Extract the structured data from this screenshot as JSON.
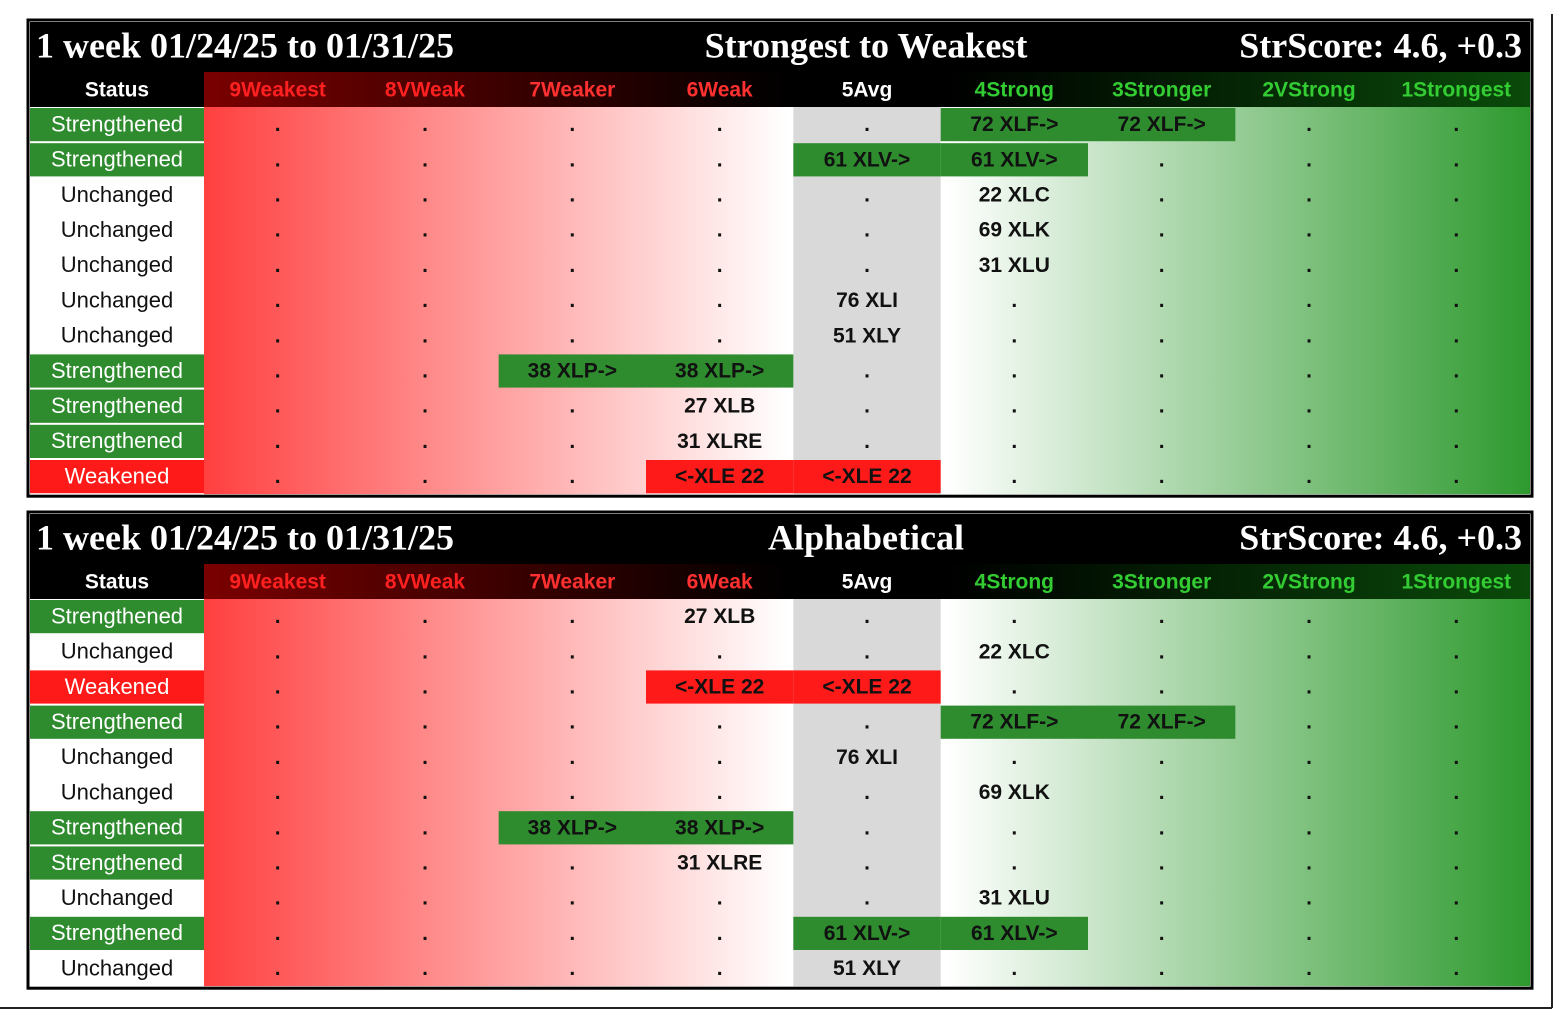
{
  "panels": [
    {
      "header": {
        "period": "1 week 01/24/25 to 01/31/25",
        "title": "Strongest to Weakest",
        "score": "StrScore: 4.6, +0.3"
      },
      "columns": [
        "Status",
        "9Weakest",
        "8VWeak",
        "7Weaker",
        "6Weak",
        "5Avg",
        "4Strong",
        "3Stronger",
        "2VStrong",
        "1Strongest"
      ],
      "column_colors": [
        "#ffffff",
        "#ff2020",
        "#ff2020",
        "#ff3030",
        "#ff3030",
        "#ffffff",
        "#33cc33",
        "#33cc33",
        "#33cc33",
        "#33cc33"
      ],
      "rows": [
        {
          "status": "Strengthened",
          "color": "#2e8b2e",
          "moved": true,
          "cells": [
            ".",
            ".",
            ".",
            ".",
            ".",
            "72 XLF->",
            "72 XLF->",
            ".",
            "."
          ]
        },
        {
          "status": "Strengthened",
          "color": "#2e8b2e",
          "moved": true,
          "cells": [
            ".",
            ".",
            ".",
            ".",
            "61 XLV->",
            "61 XLV->",
            ".",
            ".",
            "."
          ]
        },
        {
          "status": "Unchanged",
          "color": "#ffffff",
          "moved": false,
          "cells": [
            ".",
            ".",
            ".",
            ".",
            ".",
            "22 XLC",
            ".",
            ".",
            "."
          ]
        },
        {
          "status": "Unchanged",
          "color": "#ffffff",
          "moved": false,
          "cells": [
            ".",
            ".",
            ".",
            ".",
            ".",
            "69 XLK",
            ".",
            ".",
            "."
          ]
        },
        {
          "status": "Unchanged",
          "color": "#ffffff",
          "moved": false,
          "cells": [
            ".",
            ".",
            ".",
            ".",
            ".",
            "31 XLU",
            ".",
            ".",
            "."
          ]
        },
        {
          "status": "Unchanged",
          "color": "#ffffff",
          "moved": false,
          "cells": [
            ".",
            ".",
            ".",
            ".",
            "76 XLI",
            ".",
            ".",
            ".",
            "."
          ]
        },
        {
          "status": "Unchanged",
          "color": "#ffffff",
          "moved": false,
          "cells": [
            ".",
            ".",
            ".",
            ".",
            "51 XLY",
            ".",
            ".",
            ".",
            "."
          ]
        },
        {
          "status": "Strengthened",
          "color": "#2e8b2e",
          "moved": true,
          "cells": [
            ".",
            ".",
            "38 XLP->",
            "38 XLP->",
            ".",
            ".",
            ".",
            ".",
            "."
          ]
        },
        {
          "status": "Strengthened",
          "color": "#2e8b2e",
          "moved": false,
          "cells": [
            ".",
            ".",
            ".",
            "27 XLB",
            ".",
            ".",
            ".",
            ".",
            "."
          ]
        },
        {
          "status": "Strengthened",
          "color": "#2e8b2e",
          "moved": false,
          "cells": [
            ".",
            ".",
            ".",
            "31 XLRE",
            ".",
            ".",
            ".",
            ".",
            "."
          ]
        },
        {
          "status": "Weakened",
          "color": "#ff1a1a",
          "moved": true,
          "cells": [
            ".",
            ".",
            ".",
            "<-XLE 22",
            "<-XLE 22",
            ".",
            ".",
            ".",
            "."
          ]
        }
      ]
    },
    {
      "header": {
        "period": "1 week 01/24/25 to 01/31/25",
        "title": "Alphabetical",
        "score": "StrScore: 4.6, +0.3"
      },
      "columns": [
        "Status",
        "9Weakest",
        "8VWeak",
        "7Weaker",
        "6Weak",
        "5Avg",
        "4Strong",
        "3Stronger",
        "2VStrong",
        "1Strongest"
      ],
      "column_colors": [
        "#ffffff",
        "#ff2020",
        "#ff2020",
        "#ff3030",
        "#ff3030",
        "#ffffff",
        "#33cc33",
        "#33cc33",
        "#33cc33",
        "#33cc33"
      ],
      "rows": [
        {
          "status": "Strengthened",
          "color": "#2e8b2e",
          "moved": false,
          "cells": [
            ".",
            ".",
            ".",
            "27 XLB",
            ".",
            ".",
            ".",
            ".",
            "."
          ]
        },
        {
          "status": "Unchanged",
          "color": "#ffffff",
          "moved": false,
          "cells": [
            ".",
            ".",
            ".",
            ".",
            ".",
            "22 XLC",
            ".",
            ".",
            "."
          ]
        },
        {
          "status": "Weakened",
          "color": "#ff1a1a",
          "moved": true,
          "cells": [
            ".",
            ".",
            ".",
            "<-XLE 22",
            "<-XLE 22",
            ".",
            ".",
            ".",
            "."
          ]
        },
        {
          "status": "Strengthened",
          "color": "#2e8b2e",
          "moved": true,
          "cells": [
            ".",
            ".",
            ".",
            ".",
            ".",
            "72 XLF->",
            "72 XLF->",
            ".",
            "."
          ]
        },
        {
          "status": "Unchanged",
          "color": "#ffffff",
          "moved": false,
          "cells": [
            ".",
            ".",
            ".",
            ".",
            "76 XLI",
            ".",
            ".",
            ".",
            "."
          ]
        },
        {
          "status": "Unchanged",
          "color": "#ffffff",
          "moved": false,
          "cells": [
            ".",
            ".",
            ".",
            ".",
            ".",
            "69 XLK",
            ".",
            ".",
            "."
          ]
        },
        {
          "status": "Strengthened",
          "color": "#2e8b2e",
          "moved": true,
          "cells": [
            ".",
            ".",
            "38 XLP->",
            "38 XLP->",
            ".",
            ".",
            ".",
            ".",
            "."
          ]
        },
        {
          "status": "Strengthened",
          "color": "#2e8b2e",
          "moved": false,
          "cells": [
            ".",
            ".",
            ".",
            "31 XLRE",
            ".",
            ".",
            ".",
            ".",
            "."
          ]
        },
        {
          "status": "Unchanged",
          "color": "#ffffff",
          "moved": false,
          "cells": [
            ".",
            ".",
            ".",
            ".",
            ".",
            "31 XLU",
            ".",
            ".",
            "."
          ]
        },
        {
          "status": "Strengthened",
          "color": "#2e8b2e",
          "moved": true,
          "cells": [
            ".",
            ".",
            ".",
            ".",
            "61 XLV->",
            "61 XLV->",
            ".",
            ".",
            "."
          ]
        },
        {
          "status": "Unchanged",
          "color": "#ffffff",
          "moved": false,
          "cells": [
            ".",
            ".",
            ".",
            ".",
            "51 XLY",
            ".",
            ".",
            ".",
            "."
          ]
        }
      ]
    }
  ]
}
